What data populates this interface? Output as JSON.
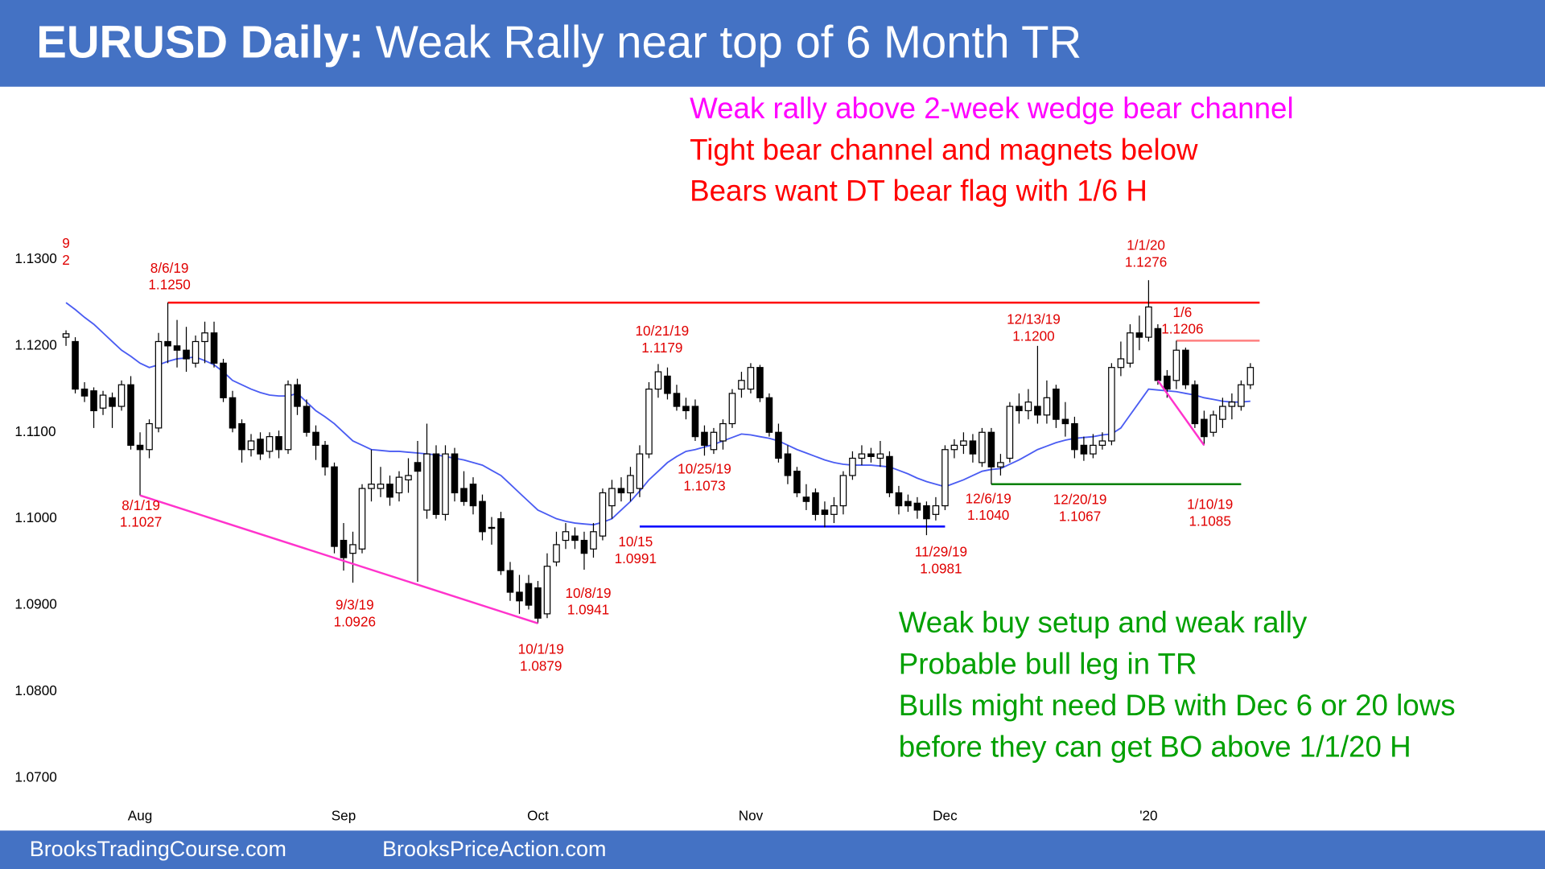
{
  "header": {
    "title_bold": "EURUSD Daily:",
    "title": "Weak Rally near top of 6 Month TR"
  },
  "chart_data": {
    "type": "candlestick",
    "categories": [
      null,
      null,
      null,
      null,
      null,
      null,
      null,
      null,
      "Aug",
      null,
      null,
      null,
      null,
      null,
      null,
      null,
      null,
      null,
      null,
      null,
      null,
      null,
      null,
      null,
      null,
      null,
      null,
      null,
      null,
      null,
      "Sep",
      null,
      null,
      null,
      null,
      null,
      null,
      null,
      null,
      null,
      null,
      null,
      null,
      null,
      null,
      null,
      null,
      null,
      null,
      null,
      null,
      "Oct",
      null,
      null,
      null,
      null,
      null,
      null,
      null,
      null,
      null,
      null,
      null,
      null,
      null,
      null,
      null,
      null,
      null,
      null,
      null,
      null,
      null,
      null,
      "Nov",
      null,
      null,
      null,
      null,
      null,
      null,
      null,
      null,
      null,
      null,
      null,
      null,
      null,
      null,
      null,
      null,
      null,
      null,
      null,
      null,
      "Dec",
      null,
      null,
      null,
      null,
      null,
      null,
      null,
      null,
      null,
      null,
      null,
      null,
      null,
      null,
      null,
      null,
      null,
      null,
      null,
      null,
      null,
      "'20",
      null,
      null,
      null,
      null,
      null,
      null,
      null,
      null,
      null,
      null,
      null
    ],
    "ohlc": [
      [
        1.121,
        1.1218,
        1.12,
        1.1214
      ],
      [
        1.1205,
        1.121,
        1.1145,
        1.115
      ],
      [
        1.115,
        1.1158,
        1.1135,
        1.1142
      ],
      [
        1.1148,
        1.1152,
        1.1105,
        1.1125
      ],
      [
        1.1128,
        1.1148,
        1.112,
        1.1143
      ],
      [
        1.114,
        1.1146,
        1.1105,
        1.113
      ],
      [
        1.113,
        1.116,
        1.1125,
        1.1155
      ],
      [
        1.1155,
        1.1165,
        1.108,
        1.1085
      ],
      [
        1.1085,
        1.11,
        1.1027,
        1.108
      ],
      [
        1.108,
        1.1115,
        1.107,
        1.111
      ],
      [
        1.1105,
        1.1215,
        1.11,
        1.1205
      ],
      [
        1.1205,
        1.125,
        1.118,
        1.12
      ],
      [
        1.12,
        1.123,
        1.1175,
        1.1195
      ],
      [
        1.1195,
        1.1222,
        1.117,
        1.1185
      ],
      [
        1.118,
        1.1212,
        1.1175,
        1.1205
      ],
      [
        1.1205,
        1.1228,
        1.118,
        1.1215
      ],
      [
        1.1215,
        1.1228,
        1.1175,
        1.118
      ],
      [
        1.118,
        1.1185,
        1.1135,
        1.114
      ],
      [
        1.114,
        1.1148,
        1.11,
        1.1105
      ],
      [
        1.111,
        1.1115,
        1.1065,
        1.108
      ],
      [
        1.108,
        1.1098,
        1.1072,
        1.109
      ],
      [
        1.1092,
        1.11,
        1.1068,
        1.1075
      ],
      [
        1.1078,
        1.11,
        1.107,
        1.1095
      ],
      [
        1.1095,
        1.1102,
        1.107,
        1.108
      ],
      [
        1.108,
        1.116,
        1.1075,
        1.1155
      ],
      [
        1.1155,
        1.1162,
        1.112,
        1.113
      ],
      [
        1.113,
        1.1138,
        1.1095,
        1.11
      ],
      [
        1.11,
        1.1108,
        1.1068,
        1.1085
      ],
      [
        1.1085,
        1.109,
        1.105,
        1.106
      ],
      [
        1.106,
        1.1065,
        1.096,
        1.0968
      ],
      [
        1.0975,
        1.0995,
        1.094,
        1.0955
      ],
      [
        1.096,
        1.0985,
        1.0926,
        1.097
      ],
      [
        1.0965,
        1.104,
        1.096,
        1.1035
      ],
      [
        1.1035,
        1.108,
        1.102,
        1.104
      ],
      [
        1.1035,
        1.106,
        1.1025,
        1.104
      ],
      [
        1.104,
        1.105,
        1.1015,
        1.1025
      ],
      [
        1.103,
        1.1055,
        1.102,
        1.1048
      ],
      [
        1.1045,
        1.107,
        1.103,
        1.105
      ],
      [
        1.1065,
        1.109,
        1.0927,
        1.1055
      ],
      [
        1.101,
        1.111,
        1.1,
        1.1075
      ],
      [
        1.1075,
        1.1085,
        1.1,
        1.1005
      ],
      [
        1.1005,
        1.1085,
        1.0998,
        1.1075
      ],
      [
        1.1075,
        1.1082,
        1.102,
        1.103
      ],
      [
        1.1035,
        1.1055,
        1.1015,
        1.102
      ],
      [
        1.104,
        1.1048,
        1.1005,
        1.1015
      ],
      [
        1.102,
        1.1028,
        1.0975,
        1.0985
      ],
      [
        1.099,
        1.1002,
        1.097,
        1.099
      ],
      [
        1.1,
        1.1008,
        1.0935,
        1.094
      ],
      [
        1.094,
        1.095,
        1.0905,
        1.0915
      ],
      [
        1.0915,
        1.0935,
        1.089,
        1.0905
      ],
      [
        1.0925,
        1.0935,
        1.0895,
        1.09
      ],
      [
        1.092,
        1.0928,
        1.0879,
        1.0885
      ],
      [
        1.089,
        1.096,
        1.0885,
        1.0945
      ],
      [
        1.095,
        1.0985,
        1.0945,
        1.097
      ],
      [
        1.0975,
        1.0995,
        1.0965,
        1.0985
      ],
      [
        1.098,
        1.099,
        1.0965,
        1.0975
      ],
      [
        1.0975,
        1.0985,
        1.0941,
        1.096
      ],
      [
        1.0965,
        1.0995,
        1.0955,
        1.0985
      ],
      [
        1.098,
        1.1035,
        1.0975,
        1.103
      ],
      [
        1.1015,
        1.1045,
        1.1,
        1.1035
      ],
      [
        1.1035,
        1.1048,
        1.102,
        1.103
      ],
      [
        1.103,
        1.106,
        1.102,
        1.105
      ],
      [
        1.1035,
        1.1085,
        1.1025,
        1.1075
      ],
      [
        1.1075,
        1.1158,
        1.107,
        1.115
      ],
      [
        1.115,
        1.1179,
        1.114,
        1.117
      ],
      [
        1.1165,
        1.1175,
        1.1138,
        1.1145
      ],
      [
        1.1145,
        1.1155,
        1.1125,
        1.113
      ],
      [
        1.113,
        1.114,
        1.1115,
        1.1125
      ],
      [
        1.113,
        1.1138,
        1.109,
        1.1095
      ],
      [
        1.11,
        1.1108,
        1.1073,
        1.1085
      ],
      [
        1.108,
        1.1105,
        1.1075,
        1.11
      ],
      [
        1.109,
        1.1115,
        1.108,
        1.111
      ],
      [
        1.111,
        1.115,
        1.1105,
        1.1145
      ],
      [
        1.115,
        1.117,
        1.114,
        1.116
      ],
      [
        1.115,
        1.118,
        1.1145,
        1.1175
      ],
      [
        1.1175,
        1.1178,
        1.1135,
        1.114
      ],
      [
        1.114,
        1.1145,
        1.1095,
        1.11
      ],
      [
        1.11,
        1.111,
        1.1065,
        1.107
      ],
      [
        1.1075,
        1.1085,
        1.104,
        1.105
      ],
      [
        1.1055,
        1.106,
        1.1025,
        1.103
      ],
      [
        1.1025,
        1.104,
        1.101,
        1.102
      ],
      [
        1.103,
        1.1035,
        1.0998,
        1.1005
      ],
      [
        1.101,
        1.102,
        1.099,
        1.1005
      ],
      [
        1.1005,
        1.1025,
        1.0995,
        1.1015
      ],
      [
        1.1015,
        1.1055,
        1.1005,
        1.105
      ],
      [
        1.105,
        1.1078,
        1.1045,
        1.107
      ],
      [
        1.107,
        1.1085,
        1.1062,
        1.1075
      ],
      [
        1.1075,
        1.1082,
        1.1065,
        1.1072
      ],
      [
        1.107,
        1.109,
        1.106,
        1.1075
      ],
      [
        1.1072,
        1.1078,
        1.1025,
        1.103
      ],
      [
        1.103,
        1.1038,
        1.1005,
        1.1015
      ],
      [
        1.102,
        1.1028,
        1.1008,
        1.1015
      ],
      [
        1.1018,
        1.1025,
        1.1,
        1.101
      ],
      [
        1.1015,
        1.102,
        1.0981,
        1.1
      ],
      [
        1.1005,
        1.1025,
        1.0998,
        1.1015
      ],
      [
        1.1015,
        1.1085,
        1.101,
        1.108
      ],
      [
        1.108,
        1.1092,
        1.107,
        1.1085
      ],
      [
        1.1085,
        1.11,
        1.1075,
        1.109
      ],
      [
        1.109,
        1.1098,
        1.1065,
        1.1075
      ],
      [
        1.1065,
        1.1105,
        1.106,
        1.11
      ],
      [
        1.11,
        1.1105,
        1.104,
        1.106
      ],
      [
        1.106,
        1.1075,
        1.105,
        1.1065
      ],
      [
        1.107,
        1.1135,
        1.1065,
        1.113
      ],
      [
        1.113,
        1.1145,
        1.111,
        1.1125
      ],
      [
        1.1125,
        1.115,
        1.1115,
        1.1135
      ],
      [
        1.113,
        1.12,
        1.111,
        1.112
      ],
      [
        1.112,
        1.116,
        1.111,
        1.114
      ],
      [
        1.115,
        1.1155,
        1.1105,
        1.1115
      ],
      [
        1.1115,
        1.1135,
        1.1095,
        1.111
      ],
      [
        1.111,
        1.1118,
        1.107,
        1.108
      ],
      [
        1.1085,
        1.1095,
        1.1067,
        1.1075
      ],
      [
        1.1075,
        1.1098,
        1.107,
        1.1085
      ],
      [
        1.1085,
        1.11,
        1.108,
        1.109
      ],
      [
        1.109,
        1.118,
        1.1085,
        1.1175
      ],
      [
        1.1175,
        1.1205,
        1.1165,
        1.1185
      ],
      [
        1.118,
        1.1225,
        1.1175,
        1.1215
      ],
      [
        1.1215,
        1.1235,
        1.1195,
        1.121
      ],
      [
        1.121,
        1.1276,
        1.1205,
        1.1245
      ],
      [
        1.122,
        1.1225,
        1.1155,
        1.116
      ],
      [
        1.1165,
        1.1172,
        1.114,
        1.115
      ],
      [
        1.116,
        1.1206,
        1.115,
        1.1195
      ],
      [
        1.1195,
        1.1198,
        1.115,
        1.1155
      ],
      [
        1.1155,
        1.116,
        1.1105,
        1.111
      ],
      [
        1.1115,
        1.1125,
        1.1085,
        1.1095
      ],
      [
        1.11,
        1.1125,
        1.1095,
        1.112
      ],
      [
        1.1115,
        1.114,
        1.1105,
        1.113
      ],
      [
        1.113,
        1.1145,
        1.1115,
        1.1135
      ],
      [
        1.113,
        1.116,
        1.1125,
        1.1155
      ],
      [
        1.1155,
        1.118,
        1.115,
        1.1175
      ]
    ],
    "up_color": "#ffffff",
    "down_color": "#000000",
    "ma": {
      "color": "#4a5cf2",
      "values": [
        1.125,
        1.1242,
        1.1233,
        1.1225,
        1.1215,
        1.1205,
        1.1195,
        1.1188,
        1.118,
        1.1175,
        1.1178,
        1.1182,
        1.1185,
        1.1186,
        1.1187,
        1.1183,
        1.1178,
        1.117,
        1.116,
        1.1155,
        1.115,
        1.1146,
        1.1143,
        1.1142,
        1.1142,
        1.1145,
        1.1135,
        1.1125,
        1.1118,
        1.111,
        1.11,
        1.109,
        1.1085,
        1.108,
        1.1079,
        1.1078,
        1.1078,
        1.1077,
        1.1076,
        1.1075,
        1.1074,
        1.1072,
        1.107,
        1.1068,
        1.1065,
        1.1062,
        1.1056,
        1.105,
        1.104,
        1.103,
        1.102,
        1.101,
        1.1005,
        1.1,
        1.0997,
        1.0995,
        1.0994,
        1.0993,
        1.0996,
        1.1,
        1.101,
        1.102,
        1.1032,
        1.1045,
        1.1055,
        1.1065,
        1.1072,
        1.1078,
        1.108,
        1.1083,
        1.1086,
        1.109,
        1.1094,
        1.1098,
        1.1097,
        1.1095,
        1.1093,
        1.109,
        1.1085,
        1.108,
        1.1076,
        1.1072,
        1.1068,
        1.1065,
        1.1063,
        1.1062,
        1.1062,
        1.1062,
        1.1061,
        1.106,
        1.1056,
        1.1052,
        1.1047,
        1.1043,
        1.104,
        1.1037,
        1.1041,
        1.1045,
        1.105,
        1.1055,
        1.1057,
        1.1058,
        1.1063,
        1.1068,
        1.1074,
        1.108,
        1.1084,
        1.1088,
        1.1091,
        1.1093,
        1.1094,
        1.1095,
        1.1097,
        1.1098,
        1.1105,
        1.112,
        1.1135,
        1.115,
        1.1149,
        1.1148,
        1.1147,
        1.1145,
        1.1143,
        1.114,
        1.1138,
        1.1136,
        1.1135,
        1.1135,
        1.1136
      ]
    },
    "ylim": [
      1.067,
      1.133
    ],
    "yticks": [
      {
        "value": 1.07,
        "label": "1.0700"
      },
      {
        "value": 1.08,
        "label": "1.0800"
      },
      {
        "value": 1.09,
        "label": "1.0900"
      },
      {
        "value": 1.1,
        "label": "1.1000"
      },
      {
        "value": 1.11,
        "label": "1.1100"
      },
      {
        "value": 1.12,
        "label": "1.1200"
      },
      {
        "value": 1.13,
        "label": "1.1300"
      }
    ],
    "grid": false,
    "levels": [
      {
        "value": 1.125,
        "color": "#ff0000",
        "start": 11,
        "end": 129
      },
      {
        "value": 1.1206,
        "color": "#ff7f7f",
        "start": 120,
        "end": 129
      },
      {
        "value": 1.0991,
        "color": "#0000ff",
        "start": 62,
        "end": 95
      },
      {
        "value": 1.104,
        "color": "#008000",
        "start": 100,
        "end": 127
      }
    ],
    "trendlines": [
      {
        "color": "#ff33cc",
        "x": [
          8,
          51
        ],
        "y": [
          1.1027,
          1.0879
        ]
      },
      {
        "color": "#ff33cc",
        "x": [
          118,
          123
        ],
        "y": [
          1.116,
          1.1085
        ]
      }
    ],
    "annotations": [
      [
        "9",
        "2"
      ],
      [
        "8/6/19",
        "1.1250"
      ],
      [
        "8/1/19",
        "1.1027"
      ],
      [
        "9/3/19",
        "1.0926"
      ],
      [
        "10/1/19",
        "1.0879"
      ],
      [
        "10/8/19",
        "1.0941"
      ],
      [
        "10/15",
        "1.0991"
      ],
      [
        "10/21/19",
        "1.1179"
      ],
      [
        "10/25/19",
        "1.1073"
      ],
      [
        "11/29/19",
        "1.0981"
      ],
      [
        "12/6/19",
        "1.1040"
      ],
      [
        "12/13/19",
        "1.1200"
      ],
      [
        "12/20/19",
        "1.1067"
      ],
      [
        "1/1/20",
        "1.1276"
      ],
      [
        "1/6",
        "1.1206"
      ],
      [
        "1/10/19",
        "1.1085"
      ]
    ],
    "annotation_color": "#e00000",
    "notes_top": [
      {
        "text": "Weak rally above 2-week wedge bear channel",
        "color": "#ff00ff"
      },
      {
        "text": "Tight bear channel and magnets below",
        "color": "#ff0000"
      },
      {
        "text": "Bears want DT bear flag with 1/6 H",
        "color": "#ff0000"
      }
    ],
    "notes_bottom": {
      "color": "#00a000",
      "lines": [
        "Weak buy setup and weak rally",
        "Probable bull leg in TR",
        "Bulls might need DB with Dec 6 or 20 lows",
        "before they can get BO above 1/1/20 H"
      ]
    }
  },
  "footer": {
    "left": "BrooksTradingCourse.com",
    "right": "BrooksPriceAction.com"
  }
}
